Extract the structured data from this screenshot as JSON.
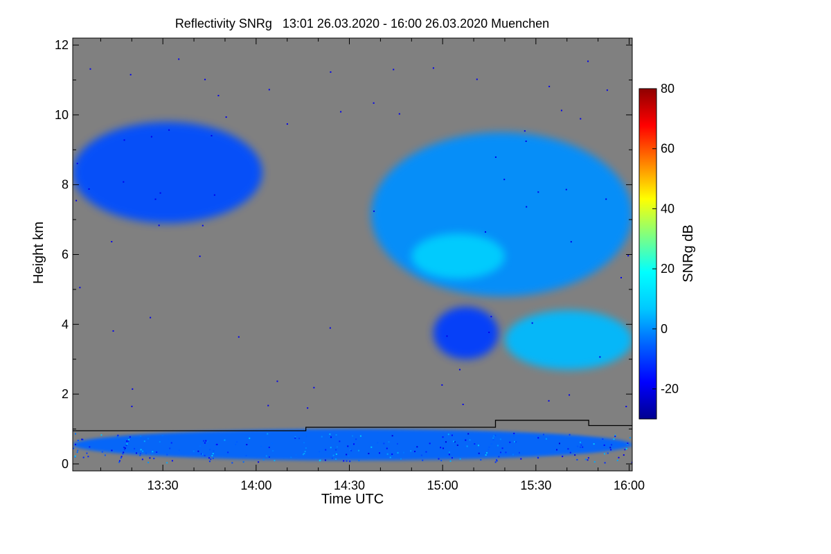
{
  "chart_data": {
    "type": "heatmap",
    "title": "Reflectivity SNRg   13:01 26.03.2020 - 16:00 26.03.2020 Muenchen",
    "xlabel": "Time UTC",
    "ylabel": "Height km",
    "x_unit": "minutes after 13:00 UTC",
    "xlim": [
      1,
      181
    ],
    "ylim": [
      -0.2,
      12.2
    ],
    "x_ticks": [
      {
        "value": 30,
        "label": "13:30"
      },
      {
        "value": 60,
        "label": "14:00"
      },
      {
        "value": 90,
        "label": "14:30"
      },
      {
        "value": 120,
        "label": "15:00"
      },
      {
        "value": 150,
        "label": "15:30"
      },
      {
        "value": 180,
        "label": "16:00"
      }
    ],
    "y_ticks": [
      0,
      2,
      4,
      6,
      8,
      10,
      12
    ],
    "background_color": "#808080",
    "colorbar": {
      "label": "SNRg dB",
      "range": [
        -30,
        80
      ],
      "ticks": [
        -20,
        0,
        20,
        40,
        60,
        80
      ],
      "colors": [
        "#00008f",
        "#0000ff",
        "#0060ff",
        "#00c8ff",
        "#00ffff",
        "#80ff80",
        "#ffff00",
        "#ff8000",
        "#ff0000",
        "#8f0000"
      ]
    },
    "echo_regions": [
      {
        "name": "upper-cloud-left",
        "time_range": [
          1,
          62
        ],
        "height_range": [
          6.9,
          9.8
        ],
        "snr_db": -8
      },
      {
        "name": "upper-cloud-right",
        "time_range": [
          97,
          181
        ],
        "height_range": [
          4.8,
          9.5
        ],
        "snr_db": 0
      },
      {
        "name": "core-high-snr",
        "time_range": [
          110,
          140
        ],
        "height_range": [
          5.3,
          6.6
        ],
        "snr_db": 12
      },
      {
        "name": "mid-cloud-left",
        "time_range": [
          117,
          138
        ],
        "height_range": [
          3.0,
          4.5
        ],
        "snr_db": -10
      },
      {
        "name": "mid-cloud-right",
        "time_range": [
          140,
          181
        ],
        "height_range": [
          2.7,
          4.4
        ],
        "snr_db": 5
      },
      {
        "name": "boundary-layer-clutter",
        "time_range": [
          1,
          181
        ],
        "height_range": [
          0.1,
          1.0
        ],
        "snr_db": -5
      }
    ],
    "boundary_line": {
      "times": [
        1,
        76,
        76,
        137,
        137,
        167,
        167,
        181
      ],
      "heights": [
        0.95,
        0.95,
        1.05,
        1.05,
        1.25,
        1.25,
        1.1,
        1.1
      ]
    }
  }
}
